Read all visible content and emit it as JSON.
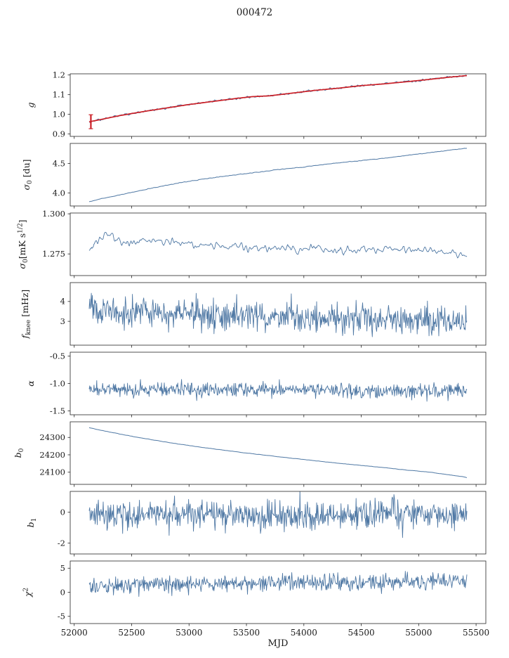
{
  "title": "000472",
  "xlabel": "MJD",
  "colors": {
    "line": "#4f78a4",
    "fit": "#cc2128",
    "axis": "#262626"
  },
  "xaxis": {
    "lim": [
      51965,
      55585
    ],
    "ticks": [
      52000,
      52500,
      53000,
      53500,
      54000,
      54500,
      55000,
      55500
    ],
    "tick_labels": [
      "52000",
      "52500",
      "53000",
      "53500",
      "54000",
      "54500",
      "55000",
      "55500"
    ]
  },
  "chart_data": [
    {
      "type": "line",
      "name": "g",
      "ylabel": "g",
      "label_parts": [
        {
          "t": "g",
          "it": 1
        }
      ],
      "ylim": [
        0.888,
        1.206
      ],
      "yticks": [
        0.9,
        1.0,
        1.1,
        1.2
      ],
      "ytick_labels": [
        "0.9",
        "1.0",
        "1.1",
        "1.2"
      ],
      "series": [
        {
          "name": "gain-data",
          "style": "noisy",
          "color": "line",
          "sigma": 0.0045,
          "n": 600,
          "smooth": 1,
          "lw": 1,
          "x": [
            52130,
            52250,
            52400,
            52600,
            52800,
            53000,
            53200,
            53400,
            53550,
            53700,
            53900,
            54100,
            54300,
            54500,
            54700,
            54900,
            55100,
            55250,
            55420
          ],
          "y": [
            0.962,
            0.976,
            0.994,
            1.014,
            1.032,
            1.05,
            1.065,
            1.08,
            1.09,
            1.094,
            1.108,
            1.122,
            1.133,
            1.146,
            1.155,
            1.166,
            1.178,
            1.188,
            1.197
          ]
        },
        {
          "name": "gain-fit",
          "style": "noisy",
          "color": "fit",
          "sigma": 0,
          "n": 300,
          "lw": 1.7,
          "x": [
            52130,
            52250,
            52400,
            52600,
            52800,
            53000,
            53200,
            53400,
            53550,
            53700,
            53900,
            54100,
            54300,
            54500,
            54700,
            54900,
            55100,
            55250,
            55420
          ],
          "y": [
            0.962,
            0.976,
            0.994,
            1.014,
            1.032,
            1.05,
            1.065,
            1.08,
            1.09,
            1.094,
            1.108,
            1.122,
            1.133,
            1.146,
            1.155,
            1.166,
            1.178,
            1.188,
            1.197
          ]
        },
        {
          "name": "gain-errorbar",
          "style": "errorbar",
          "color": "fit",
          "x": 52145,
          "y0": 0.927,
          "y1": 0.998,
          "lw": 2.2,
          "cap": 3
        }
      ]
    },
    {
      "type": "line",
      "name": "sigma0-du",
      "ylabel": "sigma0 [du]",
      "label_parts": [
        {
          "t": "σ",
          "it": 1
        },
        {
          "t": "0",
          "sub": 1
        },
        {
          "t": " [du]"
        }
      ],
      "ylim": [
        3.78,
        4.84
      ],
      "yticks": [
        4.0,
        4.5
      ],
      "ytick_labels": [
        "4.0",
        "4.5"
      ],
      "series": [
        {
          "name": "sigma0-du",
          "style": "noisy",
          "color": "line",
          "sigma": 0.004,
          "n": 500,
          "smooth": 1,
          "lw": 1,
          "x": [
            52130,
            52250,
            52400,
            52600,
            52800,
            53000,
            53250,
            53500,
            53750,
            54000,
            54250,
            54500,
            54750,
            55000,
            55200,
            55420
          ],
          "y": [
            3.85,
            3.91,
            3.97,
            4.05,
            4.13,
            4.2,
            4.27,
            4.33,
            4.39,
            4.44,
            4.5,
            4.55,
            4.6,
            4.66,
            4.71,
            4.76
          ]
        }
      ]
    },
    {
      "type": "line",
      "name": "sigma0-mK",
      "ylabel": "sigma0 [mK s^1/2]",
      "label_parts": [
        {
          "t": "σ",
          "it": 1
        },
        {
          "t": "0",
          "sub": 1
        },
        {
          "t": "[mK s"
        },
        {
          "t": "1/2",
          "sup": 1
        },
        {
          "t": "]"
        }
      ],
      "ylim": [
        1.2615,
        1.3005
      ],
      "yticks": [
        1.275,
        1.3
      ],
      "ytick_labels": [
        "1.275",
        "1.300"
      ],
      "series": [
        {
          "name": "sigma0-mK",
          "style": "noisy",
          "color": "line",
          "sigma": 0.0026,
          "n": 650,
          "smooth": 2,
          "lw": 0.9,
          "x": [
            52130,
            52220,
            52320,
            52450,
            52600,
            52800,
            53000,
            53300,
            53600,
            53900,
            54200,
            54500,
            54800,
            55100,
            55300,
            55420
          ],
          "y": [
            1.2775,
            1.2845,
            1.286,
            1.282,
            1.283,
            1.283,
            1.2815,
            1.2805,
            1.279,
            1.2785,
            1.2775,
            1.278,
            1.278,
            1.277,
            1.2755,
            1.273
          ]
        }
      ]
    },
    {
      "type": "line",
      "name": "f-knee",
      "ylabel": "f_knee [mHz]",
      "label_parts": [
        {
          "t": "f",
          "it": 1
        },
        {
          "t": "knee",
          "sub": 1
        },
        {
          "t": " [mHz]"
        }
      ],
      "ylim": [
        1.8,
        4.95
      ],
      "yticks": [
        3,
        4
      ],
      "ytick_labels": [
        "3",
        "4"
      ],
      "series": [
        {
          "name": "f-knee",
          "style": "noisy",
          "color": "line",
          "sigma": 0.37,
          "n": 700,
          "lw": 0.9,
          "x": [
            52130,
            52400,
            52800,
            53300,
            53800,
            54300,
            54800,
            55420
          ],
          "y": [
            3.62,
            3.52,
            3.45,
            3.35,
            3.22,
            3.12,
            3.06,
            3.0
          ]
        }
      ]
    },
    {
      "type": "line",
      "name": "alpha",
      "ylabel": "alpha",
      "label_parts": [
        {
          "t": "α",
          "it": 1
        }
      ],
      "ylim": [
        -1.57,
        -0.43
      ],
      "yticks": [
        -1.5,
        -1.0,
        -0.5
      ],
      "ytick_labels": [
        "-1.5",
        "-1.0",
        "-0.5"
      ],
      "series": [
        {
          "name": "alpha",
          "style": "noisy",
          "color": "line",
          "sigma": 0.065,
          "n": 700,
          "lw": 0.9,
          "x": [
            52130,
            55420
          ],
          "y": [
            -1.1,
            -1.13
          ]
        }
      ]
    },
    {
      "type": "line",
      "name": "b0",
      "ylabel": "b0",
      "label_parts": [
        {
          "t": "b",
          "it": 1
        },
        {
          "t": "0",
          "sub": 1
        }
      ],
      "ylim": [
        24030,
        24390
      ],
      "yticks": [
        24100,
        24200,
        24300
      ],
      "ytick_labels": [
        "24100",
        "24200",
        "24300"
      ],
      "series": [
        {
          "name": "b0",
          "style": "noisy",
          "color": "line",
          "sigma": 1,
          "n": 500,
          "smooth": 2,
          "lw": 1,
          "x": [
            52130,
            52300,
            52500,
            52700,
            52900,
            53100,
            53300,
            53500,
            53700,
            53900,
            54100,
            54300,
            54500,
            54700,
            54900,
            55100,
            55300,
            55420
          ],
          "y": [
            24356,
            24332,
            24307,
            24284,
            24263,
            24244,
            24227,
            24210,
            24195,
            24180,
            24166,
            24152,
            24139,
            24126,
            24112,
            24100,
            24082,
            24070
          ]
        }
      ]
    },
    {
      "type": "line",
      "name": "b1",
      "ylabel": "b1",
      "label_parts": [
        {
          "t": "b",
          "it": 1
        },
        {
          "t": "1",
          "sub": 1
        }
      ],
      "ylim": [
        -2.7,
        1.35
      ],
      "yticks": [
        -2,
        0
      ],
      "ytick_labels": [
        "-2",
        "0"
      ],
      "series": [
        {
          "name": "b1",
          "style": "noisy",
          "color": "line",
          "sigma": 0.46,
          "n": 700,
          "lw": 0.9,
          "x": [
            52130,
            55420
          ],
          "y": [
            -0.12,
            -0.18
          ]
        }
      ]
    },
    {
      "type": "line",
      "name": "chi2",
      "ylabel": "chi^2",
      "label_parts": [
        {
          "t": "χ",
          "it": 1
        },
        {
          "t": "2",
          "sup": 1
        }
      ],
      "ylim": [
        -6.5,
        6.5
      ],
      "yticks": [
        -5,
        0,
        5
      ],
      "ytick_labels": [
        "-5",
        "0",
        "5"
      ],
      "series": [
        {
          "name": "chi2",
          "style": "noisy",
          "color": "line",
          "sigma": 0.85,
          "n": 700,
          "lw": 0.9,
          "x": [
            52130,
            52600,
            53200,
            54000,
            54800,
            55420
          ],
          "y": [
            1.25,
            1.6,
            1.85,
            2.0,
            2.2,
            2.35
          ]
        }
      ]
    }
  ]
}
